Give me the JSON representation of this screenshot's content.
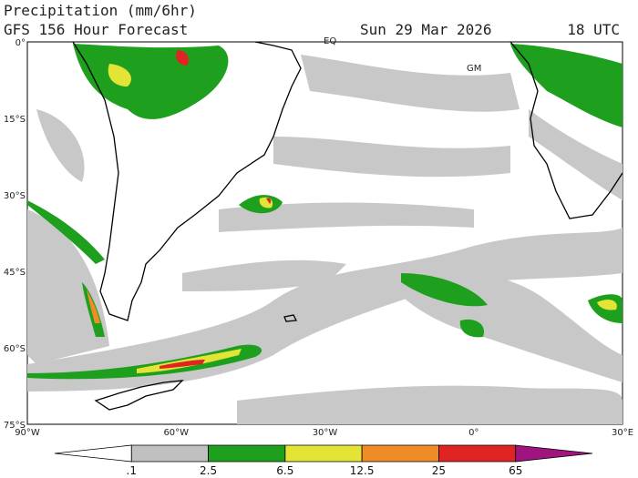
{
  "header": {
    "title": "Precipitation (mm/6hr)",
    "subtitle": "GFS 156 Hour Forecast",
    "date": "Sun 29 Mar 2026",
    "time": "18 UTC"
  },
  "map": {
    "lat_labels": [
      "0°",
      "15°S",
      "30°S",
      "45°S",
      "60°S",
      "75°S"
    ],
    "lon_labels": [
      "90°W",
      "60°W",
      "30°W",
      "0°",
      "30°E"
    ],
    "place_labels": [
      "EQ",
      "GM"
    ]
  },
  "colorbar": {
    "labels": [
      ".1",
      "2.5",
      "6.5",
      "12.5",
      "25",
      "65"
    ],
    "colors": [
      "#ffffff",
      "#c0c0c0",
      "#1ea01e",
      "#e4e436",
      "#f08c28",
      "#e02424",
      "#a0147f"
    ]
  }
}
